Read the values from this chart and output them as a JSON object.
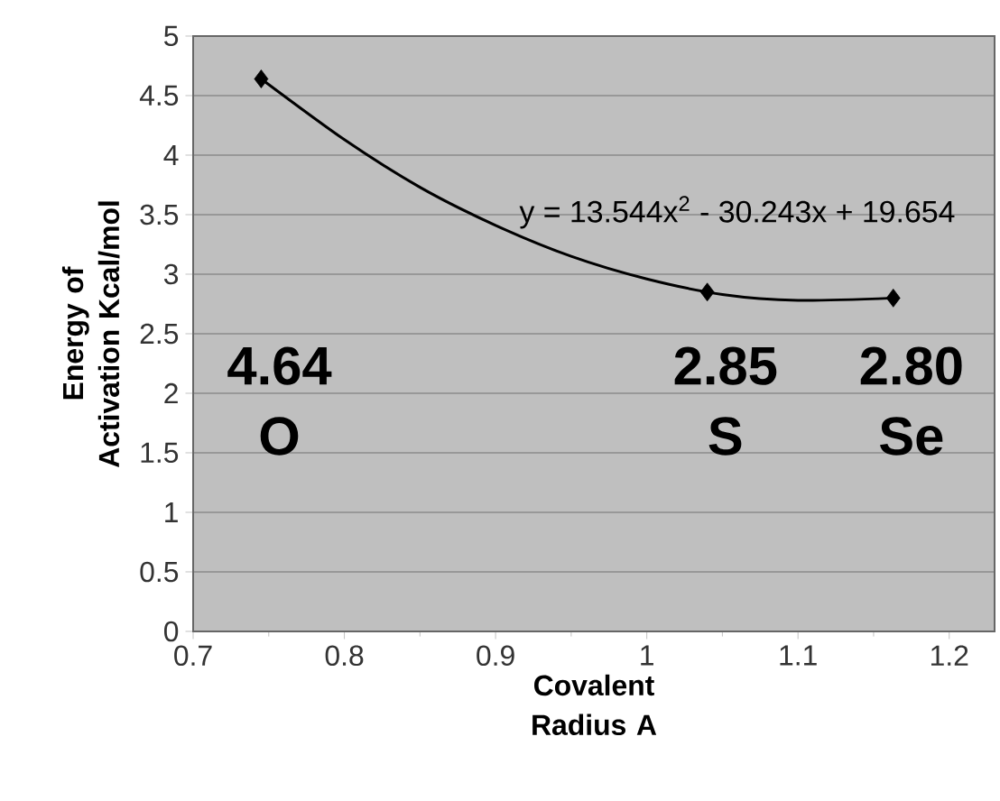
{
  "chart_data": {
    "type": "scatter",
    "xlabel": "Covalent Radius A",
    "ylabel": "Energy of Activation Kcal/mol",
    "series": [
      {
        "color": "#000000",
        "marker": "diamond",
        "x": [
          0.745,
          1.04,
          1.163
        ],
        "values": [
          4.64,
          2.85,
          2.8
        ]
      },
      {
        "type": "line",
        "color": "#000000",
        "marker": "none",
        "x": [
          0.745,
          0.8,
          0.85,
          0.9,
          0.95,
          1.0,
          1.05,
          1.1,
          1.163
        ],
        "values": [
          4.64,
          4.13,
          3.73,
          3.41,
          3.15,
          2.96,
          2.83,
          2.78,
          2.8
        ]
      }
    ],
    "xlim": [
      0.7,
      1.23
    ],
    "xticks": [
      0.7,
      0.8,
      0.9,
      1,
      1.1,
      1.2
    ],
    "ylim": [
      0,
      5
    ],
    "yticks": [
      0,
      0.5,
      1,
      1.5,
      2,
      2.5,
      3,
      3.5,
      4,
      4.5,
      5
    ],
    "grid": "y",
    "annotations": [
      "y = 13.544x$^{2}$ - 30.243x + 19.654",
      "4.64",
      "O",
      "2.85",
      "S",
      "2.80",
      "Se"
    ]
  }
}
